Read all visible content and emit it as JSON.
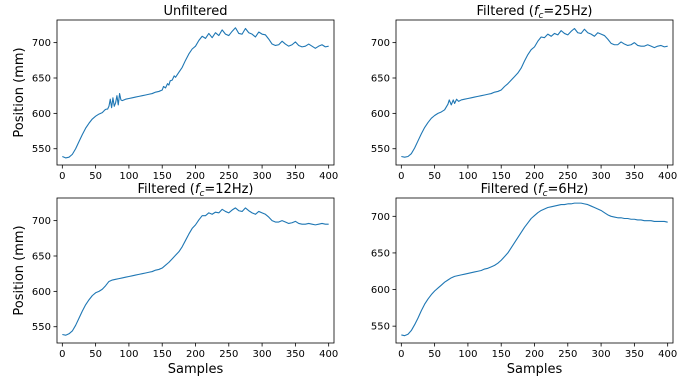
{
  "chart_data": [
    {
      "type": "line",
      "title": "Unfiltered",
      "xlabel": "",
      "ylabel": "Position (mm)",
      "xlim": [
        -8,
        408
      ],
      "ylim": [
        527,
        732
      ],
      "xticks": [
        0,
        50,
        100,
        150,
        200,
        250,
        300,
        350,
        400
      ],
      "yticks": [
        550,
        600,
        650,
        700
      ],
      "series": [
        {
          "color": "#1f77b4",
          "x": [
            0,
            5,
            10,
            15,
            20,
            25,
            30,
            35,
            40,
            45,
            50,
            55,
            60,
            62,
            64,
            66,
            68,
            70,
            72,
            74,
            76,
            78,
            80,
            82,
            84,
            86,
            88,
            90,
            95,
            100,
            105,
            110,
            115,
            120,
            125,
            130,
            135,
            140,
            145,
            150,
            152,
            155,
            158,
            160,
            162,
            165,
            168,
            170,
            175,
            180,
            185,
            190,
            195,
            200,
            205,
            210,
            215,
            220,
            225,
            230,
            235,
            240,
            245,
            250,
            255,
            260,
            265,
            270,
            275,
            280,
            285,
            290,
            295,
            300,
            305,
            310,
            315,
            320,
            325,
            330,
            335,
            340,
            345,
            350,
            355,
            360,
            365,
            370,
            375,
            380,
            385,
            390,
            395,
            400
          ],
          "y": [
            539,
            537,
            538,
            542,
            550,
            560,
            570,
            579,
            586,
            592,
            596,
            599,
            601,
            603,
            605,
            606,
            606,
            610,
            620,
            608,
            622,
            610,
            615,
            625,
            612,
            628,
            619,
            618,
            620,
            621,
            622,
            623,
            624,
            625,
            626,
            627,
            628,
            630,
            631,
            633,
            638,
            636,
            642,
            640,
            646,
            647,
            653,
            651,
            658,
            665,
            675,
            684,
            691,
            695,
            703,
            709,
            706,
            713,
            707,
            714,
            710,
            718,
            712,
            710,
            716,
            721,
            713,
            712,
            720,
            714,
            712,
            708,
            715,
            712,
            711,
            705,
            698,
            696,
            697,
            702,
            698,
            695,
            697,
            701,
            696,
            694,
            695,
            698,
            695,
            692,
            695,
            697,
            694,
            695
          ]
        }
      ]
    },
    {
      "type": "line",
      "title": "Filtered (f_c=25Hz)",
      "xlabel": "",
      "ylabel": "",
      "xlim": [
        -8,
        408
      ],
      "ylim": [
        527,
        732
      ],
      "xticks": [
        0,
        50,
        100,
        150,
        200,
        250,
        300,
        350,
        400
      ],
      "yticks": [
        550,
        600,
        650,
        700
      ],
      "series": [
        {
          "color": "#1f77b4",
          "x": [
            0,
            5,
            10,
            15,
            20,
            25,
            30,
            35,
            40,
            45,
            50,
            55,
            60,
            65,
            70,
            72,
            75,
            78,
            80,
            83,
            86,
            90,
            95,
            100,
            105,
            110,
            115,
            120,
            125,
            130,
            135,
            140,
            145,
            150,
            155,
            160,
            165,
            170,
            175,
            180,
            185,
            190,
            195,
            200,
            205,
            210,
            215,
            220,
            225,
            230,
            235,
            240,
            245,
            250,
            255,
            260,
            265,
            270,
            275,
            280,
            285,
            290,
            295,
            300,
            305,
            310,
            315,
            320,
            325,
            330,
            335,
            340,
            345,
            350,
            355,
            360,
            365,
            370,
            375,
            380,
            385,
            390,
            395,
            400
          ],
          "y": [
            539,
            538,
            539,
            543,
            551,
            561,
            571,
            580,
            587,
            593,
            597,
            600,
            602,
            605,
            613,
            619,
            612,
            619,
            614,
            620,
            617,
            619,
            620,
            621,
            622,
            623,
            624,
            625,
            626,
            627,
            628,
            630,
            631,
            633,
            638,
            642,
            647,
            652,
            657,
            664,
            674,
            683,
            690,
            694,
            702,
            708,
            707,
            712,
            709,
            713,
            711,
            717,
            713,
            711,
            716,
            720,
            714,
            713,
            719,
            714,
            712,
            709,
            714,
            712,
            710,
            705,
            699,
            697,
            697,
            701,
            698,
            696,
            697,
            700,
            696,
            695,
            695,
            697,
            695,
            693,
            695,
            696,
            694,
            695
          ]
        }
      ]
    },
    {
      "type": "line",
      "title": "Filtered (f_c=12Hz)",
      "xlabel": "Samples",
      "ylabel": "Position (mm)",
      "xlim": [
        -8,
        408
      ],
      "ylim": [
        527,
        732
      ],
      "xticks": [
        0,
        50,
        100,
        150,
        200,
        250,
        300,
        350,
        400
      ],
      "yticks": [
        550,
        600,
        650,
        700
      ],
      "series": [
        {
          "color": "#1f77b4",
          "x": [
            0,
            5,
            10,
            15,
            20,
            25,
            30,
            35,
            40,
            45,
            50,
            55,
            60,
            65,
            70,
            75,
            80,
            85,
            90,
            95,
            100,
            105,
            110,
            115,
            120,
            125,
            130,
            135,
            140,
            145,
            150,
            155,
            160,
            165,
            170,
            175,
            180,
            185,
            190,
            195,
            200,
            205,
            210,
            215,
            220,
            225,
            230,
            235,
            240,
            245,
            250,
            255,
            260,
            265,
            270,
            275,
            280,
            285,
            290,
            295,
            300,
            305,
            310,
            315,
            320,
            325,
            330,
            335,
            340,
            345,
            350,
            355,
            360,
            365,
            370,
            375,
            380,
            385,
            390,
            395,
            400
          ],
          "y": [
            539,
            538,
            540,
            544,
            552,
            562,
            572,
            581,
            588,
            594,
            598,
            600,
            603,
            608,
            614,
            616,
            617,
            618,
            619,
            620,
            621,
            622,
            623,
            624,
            625,
            626,
            627,
            628,
            630,
            631,
            633,
            637,
            641,
            646,
            651,
            656,
            663,
            672,
            681,
            689,
            694,
            701,
            707,
            707,
            711,
            709,
            712,
            711,
            716,
            713,
            711,
            715,
            718,
            714,
            713,
            718,
            714,
            711,
            709,
            713,
            711,
            709,
            705,
            700,
            698,
            698,
            700,
            698,
            696,
            697,
            699,
            696,
            695,
            695,
            696,
            695,
            694,
            695,
            696,
            695,
            695
          ]
        }
      ]
    },
    {
      "type": "line",
      "title": "Filtered (f_c=6Hz)",
      "xlabel": "Samples",
      "ylabel": "",
      "xlim": [
        -8,
        408
      ],
      "ylim": [
        527,
        725
      ],
      "xticks": [
        0,
        50,
        100,
        150,
        200,
        250,
        300,
        350,
        400
      ],
      "yticks": [
        550,
        600,
        650,
        700
      ],
      "series": [
        {
          "color": "#1f77b4",
          "x": [
            0,
            5,
            10,
            15,
            20,
            25,
            30,
            35,
            40,
            45,
            50,
            55,
            60,
            65,
            70,
            75,
            80,
            85,
            90,
            95,
            100,
            105,
            110,
            115,
            120,
            125,
            130,
            135,
            140,
            145,
            150,
            155,
            160,
            165,
            170,
            175,
            180,
            185,
            190,
            195,
            200,
            205,
            210,
            215,
            220,
            225,
            230,
            235,
            240,
            245,
            250,
            255,
            260,
            265,
            270,
            275,
            280,
            285,
            290,
            295,
            300,
            305,
            310,
            315,
            320,
            325,
            330,
            335,
            340,
            345,
            350,
            355,
            360,
            365,
            370,
            375,
            380,
            385,
            390,
            395,
            400
          ],
          "y": [
            538,
            537,
            539,
            544,
            552,
            561,
            571,
            580,
            587,
            593,
            598,
            602,
            606,
            610,
            613,
            616,
            618,
            619,
            620,
            621,
            622,
            623,
            624,
            625,
            626,
            628,
            629,
            631,
            633,
            636,
            640,
            645,
            650,
            657,
            664,
            671,
            678,
            685,
            691,
            697,
            701,
            705,
            708,
            710,
            712,
            713,
            714,
            715,
            716,
            716,
            717,
            717,
            718,
            718,
            718,
            717,
            716,
            714,
            712,
            710,
            708,
            705,
            702,
            700,
            699,
            698,
            698,
            697,
            697,
            696,
            696,
            695,
            695,
            694,
            694,
            694,
            693,
            693,
            693,
            693,
            692
          ]
        }
      ]
    }
  ]
}
